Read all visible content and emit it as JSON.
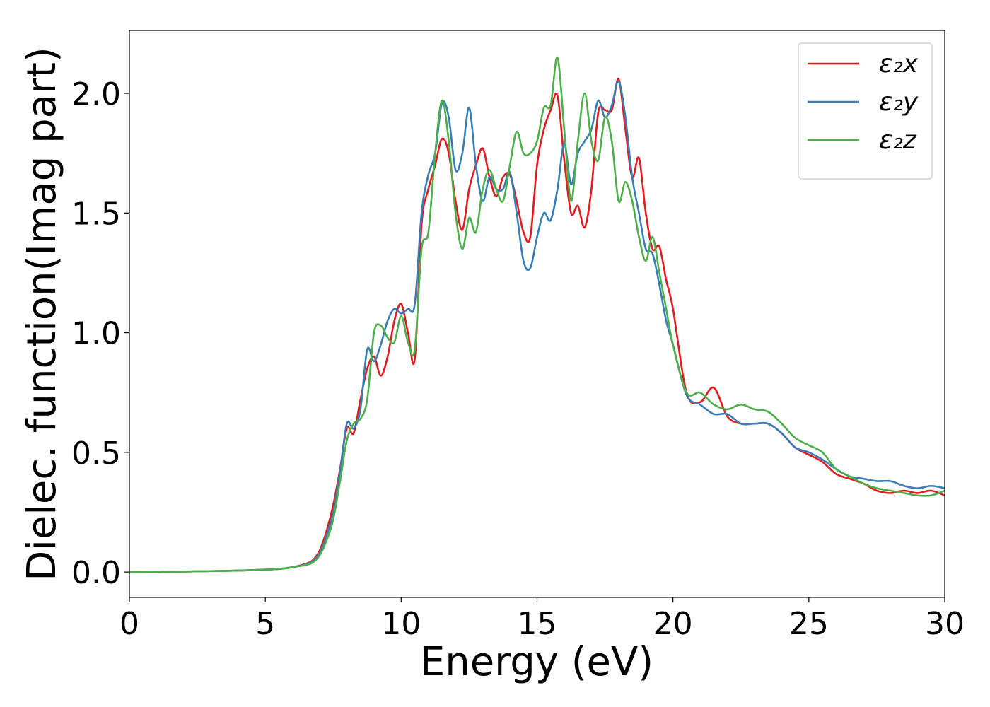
{
  "chart_data": {
    "type": "line",
    "xlabel": "Energy (eV)",
    "ylabel": "Dielec. function(Imag part)",
    "xlim": [
      0,
      30
    ],
    "ylim": [
      -0.106,
      2.263
    ],
    "xticks": [
      0,
      5,
      10,
      15,
      20,
      25,
      30
    ],
    "yticks": [
      {
        "value": 0,
        "label": "0.0"
      },
      {
        "value": 0.5,
        "label": "0.5"
      },
      {
        "value": 1,
        "label": "1.0"
      },
      {
        "value": 1.5,
        "label": "1.5"
      },
      {
        "value": 2,
        "label": "2.0"
      }
    ],
    "legend": "upper right",
    "grid": false,
    "x": [
      0,
      1,
      2,
      3,
      4,
      5,
      5.5,
      6,
      6.5,
      6.75,
      7,
      7.25,
      7.5,
      7.75,
      8,
      8.25,
      8.5,
      8.75,
      9,
      9.25,
      9.5,
      9.75,
      10,
      10.25,
      10.5,
      10.75,
      11,
      11.25,
      11.5,
      11.75,
      12,
      12.25,
      12.5,
      12.75,
      13,
      13.25,
      13.5,
      13.75,
      14,
      14.25,
      14.5,
      14.75,
      15,
      15.25,
      15.5,
      15.75,
      16,
      16.25,
      16.5,
      16.75,
      17,
      17.25,
      17.5,
      17.75,
      18,
      18.25,
      18.5,
      18.75,
      19,
      19.25,
      19.5,
      19.75,
      20,
      20.5,
      21,
      21.5,
      22,
      22.5,
      23,
      23.5,
      24,
      24.5,
      25,
      25.5,
      26,
      26.5,
      27,
      27.5,
      28,
      28.5,
      29,
      29.5,
      30
    ],
    "series": [
      {
        "name": "ε₂x",
        "color": "#e41a1c",
        "values": [
          0,
          0.001,
          0.002,
          0.004,
          0.006,
          0.01,
          0.013,
          0.02,
          0.035,
          0.05,
          0.09,
          0.17,
          0.28,
          0.43,
          0.6,
          0.58,
          0.72,
          0.85,
          0.9,
          0.82,
          0.9,
          1.05,
          1.12,
          1.0,
          0.89,
          1.45,
          1.6,
          1.7,
          1.81,
          1.75,
          1.55,
          1.43,
          1.6,
          1.7,
          1.77,
          1.65,
          1.57,
          1.65,
          1.66,
          1.55,
          1.42,
          1.4,
          1.7,
          1.85,
          1.93,
          1.99,
          1.72,
          1.5,
          1.53,
          1.44,
          1.6,
          1.92,
          1.93,
          1.93,
          2.06,
          1.85,
          1.65,
          1.73,
          1.5,
          1.35,
          1.36,
          1.22,
          1.1,
          0.75,
          0.71,
          0.77,
          0.65,
          0.62,
          0.62,
          0.62,
          0.58,
          0.52,
          0.49,
          0.46,
          0.41,
          0.39,
          0.37,
          0.34,
          0.33,
          0.34,
          0.33,
          0.34,
          0.32
        ]
      },
      {
        "name": "ε₂y",
        "color": "#377eb8",
        "values": [
          0,
          0.001,
          0.002,
          0.004,
          0.006,
          0.01,
          0.013,
          0.02,
          0.033,
          0.045,
          0.08,
          0.15,
          0.25,
          0.42,
          0.62,
          0.6,
          0.68,
          0.93,
          0.88,
          0.95,
          1.05,
          1.1,
          1.08,
          1.1,
          1.12,
          1.5,
          1.66,
          1.75,
          1.96,
          1.9,
          1.68,
          1.75,
          1.94,
          1.7,
          1.55,
          1.65,
          1.6,
          1.6,
          1.67,
          1.5,
          1.3,
          1.27,
          1.4,
          1.5,
          1.47,
          1.6,
          1.79,
          1.62,
          1.75,
          1.8,
          1.85,
          1.97,
          1.9,
          1.95,
          2.05,
          1.9,
          1.65,
          1.5,
          1.35,
          1.33,
          1.2,
          1.05,
          0.95,
          0.74,
          0.7,
          0.66,
          0.66,
          0.62,
          0.62,
          0.62,
          0.58,
          0.52,
          0.5,
          0.47,
          0.43,
          0.4,
          0.39,
          0.38,
          0.38,
          0.36,
          0.35,
          0.36,
          0.35
        ]
      },
      {
        "name": "ε₂z",
        "color": "#4daf4a",
        "values": [
          0,
          0.001,
          0.002,
          0.004,
          0.006,
          0.01,
          0.013,
          0.02,
          0.03,
          0.04,
          0.07,
          0.13,
          0.22,
          0.38,
          0.55,
          0.62,
          0.64,
          0.72,
          1.0,
          1.03,
          0.98,
          0.96,
          1.07,
          0.96,
          0.93,
          1.35,
          1.42,
          1.75,
          1.97,
          1.8,
          1.5,
          1.35,
          1.48,
          1.42,
          1.6,
          1.68,
          1.6,
          1.55,
          1.7,
          1.84,
          1.75,
          1.75,
          1.8,
          1.94,
          1.95,
          2.15,
          1.85,
          1.55,
          1.8,
          2.0,
          1.8,
          1.72,
          1.9,
          1.8,
          1.55,
          1.63,
          1.55,
          1.4,
          1.3,
          1.4,
          1.25,
          1.1,
          0.95,
          0.75,
          0.75,
          0.7,
          0.68,
          0.7,
          0.68,
          0.67,
          0.62,
          0.56,
          0.53,
          0.5,
          0.43,
          0.4,
          0.37,
          0.35,
          0.34,
          0.33,
          0.32,
          0.32,
          0.34
        ]
      }
    ]
  }
}
